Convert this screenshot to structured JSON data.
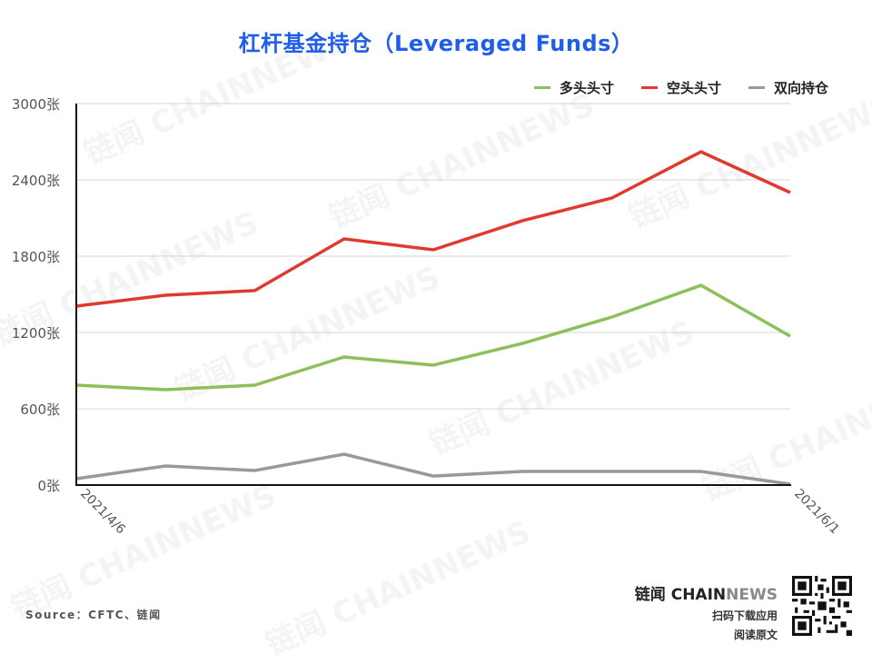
{
  "title": "杠杆基金持仓（Leveraged Funds）",
  "legend": [
    {
      "label": "多头头寸",
      "color": "#8dbf5a"
    },
    {
      "label": "空头头寸",
      "color": "#e03a2e"
    },
    {
      "label": "双向持仓",
      "color": "#999999"
    }
  ],
  "source": "Source：CFTC、链闻",
  "brand": {
    "name_a": "链闻 CHAIN",
    "name_b": "NEWS",
    "line1": "扫码下载应用",
    "line2": "阅读原文"
  },
  "watermark": "链闻 CHAINNEWS",
  "chart_data": {
    "type": "line",
    "title": "杠杆基金持仓（Leveraged Funds）",
    "xlabel": "",
    "ylabel": "",
    "x": [
      "2021/4/6",
      "",
      "",
      "",
      "",
      "",
      "",
      "",
      "2021/6/1"
    ],
    "x_tick_labels": [
      "2021/4/6",
      "2021/6/1"
    ],
    "y_tick_labels": [
      "0张",
      "600张",
      "1200张",
      "1800张",
      "2400张",
      "3000张"
    ],
    "ylim": [
      0,
      3000
    ],
    "grid": true,
    "legend_position": "top-right",
    "series": [
      {
        "name": "多头头寸",
        "color": "#8dbf5a",
        "values": [
          786,
          750,
          786,
          1007,
          943,
          1114,
          1321,
          1571,
          1171
        ]
      },
      {
        "name": "空头头寸",
        "color": "#e03a2e",
        "values": [
          1407,
          1493,
          1529,
          1936,
          1850,
          2079,
          2257,
          2621,
          2300
        ]
      },
      {
        "name": "双向持仓",
        "color": "#999999",
        "values": [
          50,
          150,
          114,
          243,
          71,
          107,
          107,
          107,
          7
        ]
      }
    ]
  }
}
